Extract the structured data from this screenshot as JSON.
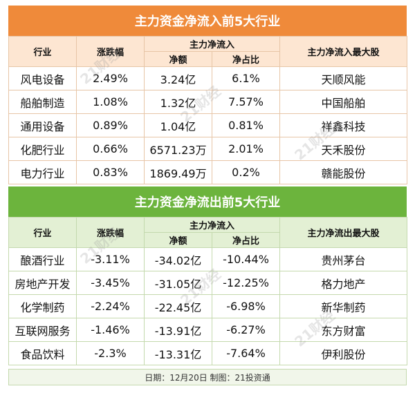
{
  "inflow": {
    "title": "主力资金净流入前5大行业",
    "headers": {
      "industry": "行业",
      "change": "涨跌幅",
      "main_flow": "主力净流入",
      "amount": "净额",
      "ratio": "净占比",
      "top_stock": "主力净流入最大股"
    },
    "rows": [
      {
        "industry": "风电设备",
        "change": "2.49%",
        "amount": "3.24亿",
        "ratio": "6.1%",
        "top_stock": "天顺风能"
      },
      {
        "industry": "船舶制造",
        "change": "1.08%",
        "amount": "1.32亿",
        "ratio": "7.57%",
        "top_stock": "中国船舶"
      },
      {
        "industry": "通用设备",
        "change": "0.89%",
        "amount": "1.04亿",
        "ratio": "0.81%",
        "top_stock": "祥鑫科技"
      },
      {
        "industry": "化肥行业",
        "change": "0.66%",
        "amount": "6571.23万",
        "ratio": "2.01%",
        "top_stock": "天禾股份"
      },
      {
        "industry": "电力行业",
        "change": "0.83%",
        "amount": "1869.49万",
        "ratio": "0.2%",
        "top_stock": "赣能股份"
      }
    ]
  },
  "outflow": {
    "title": "主力资金净流出前5大行业",
    "headers": {
      "industry": "行业",
      "change": "涨跌幅",
      "main_flow": "主力净流入",
      "amount": "净额",
      "ratio": "净占比",
      "top_stock": "主力净流出最大股"
    },
    "rows": [
      {
        "industry": "酿酒行业",
        "change": "-3.11%",
        "amount": "-34.02亿",
        "ratio": "-10.44%",
        "top_stock": "贵州茅台"
      },
      {
        "industry": "房地产开发",
        "change": "-3.45%",
        "amount": "-31.05亿",
        "ratio": "-12.25%",
        "top_stock": "格力地产"
      },
      {
        "industry": "化学制药",
        "change": "-2.24%",
        "amount": "-22.45亿",
        "ratio": "-6.98%",
        "top_stock": "新华制药"
      },
      {
        "industry": "互联网服务",
        "change": "-1.46%",
        "amount": "-13.91亿",
        "ratio": "-6.27%",
        "top_stock": "东方财富"
      },
      {
        "industry": "食品饮料",
        "change": "-2.3%",
        "amount": "-13.31亿",
        "ratio": "-7.64%",
        "top_stock": "伊利股份"
      }
    ]
  },
  "footer": "日期：12月20日 制图：21投资通",
  "watermark_text": "21财经",
  "colors": {
    "inflow_accent": "#ef8a3a",
    "outflow_accent": "#6cb43d"
  }
}
